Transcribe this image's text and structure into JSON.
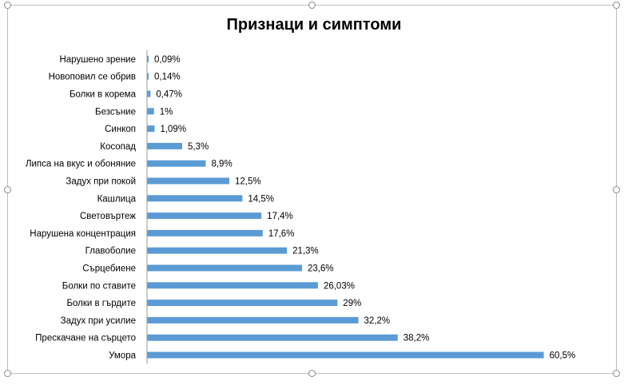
{
  "chart_data": {
    "type": "bar",
    "orientation": "horizontal",
    "title": "Признаци и симптоми",
    "categories": [
      "Нарушено зрение",
      "Новоповил се обрив",
      "Болки в корема",
      "Безсъние",
      "Синкоп",
      "Косопад",
      "Липса на вкус и обоняние",
      "Задух при покой",
      "Кашлица",
      "Световъртеж",
      "Нарушена концентрация",
      "Главоболие",
      "Сърцебиене",
      "Болки по ставите",
      "Болки в гърдите",
      "Задух при усилие",
      "Прескачане на сърцето",
      "Умора"
    ],
    "values": [
      0.09,
      0.14,
      0.47,
      1,
      1.09,
      5.3,
      8.9,
      12.5,
      14.5,
      17.4,
      17.6,
      21.3,
      23.6,
      26.03,
      29,
      32.2,
      38.2,
      60.5
    ],
    "data_labels": [
      "0,09%",
      "0,14%",
      "0,47%",
      "1%",
      "1,09%",
      "5,3%",
      "8,9%",
      "12,5%",
      "14,5%",
      "17,4%",
      "17,6%",
      "21,3%",
      "23,6%",
      "26,03%",
      "29%",
      "32,2%",
      "38,2%",
      "60,5%"
    ],
    "xlim": [
      0,
      65
    ],
    "grid": false,
    "legend": "none",
    "bar_color": "#5B9BD5",
    "axis_color": "#999999"
  }
}
